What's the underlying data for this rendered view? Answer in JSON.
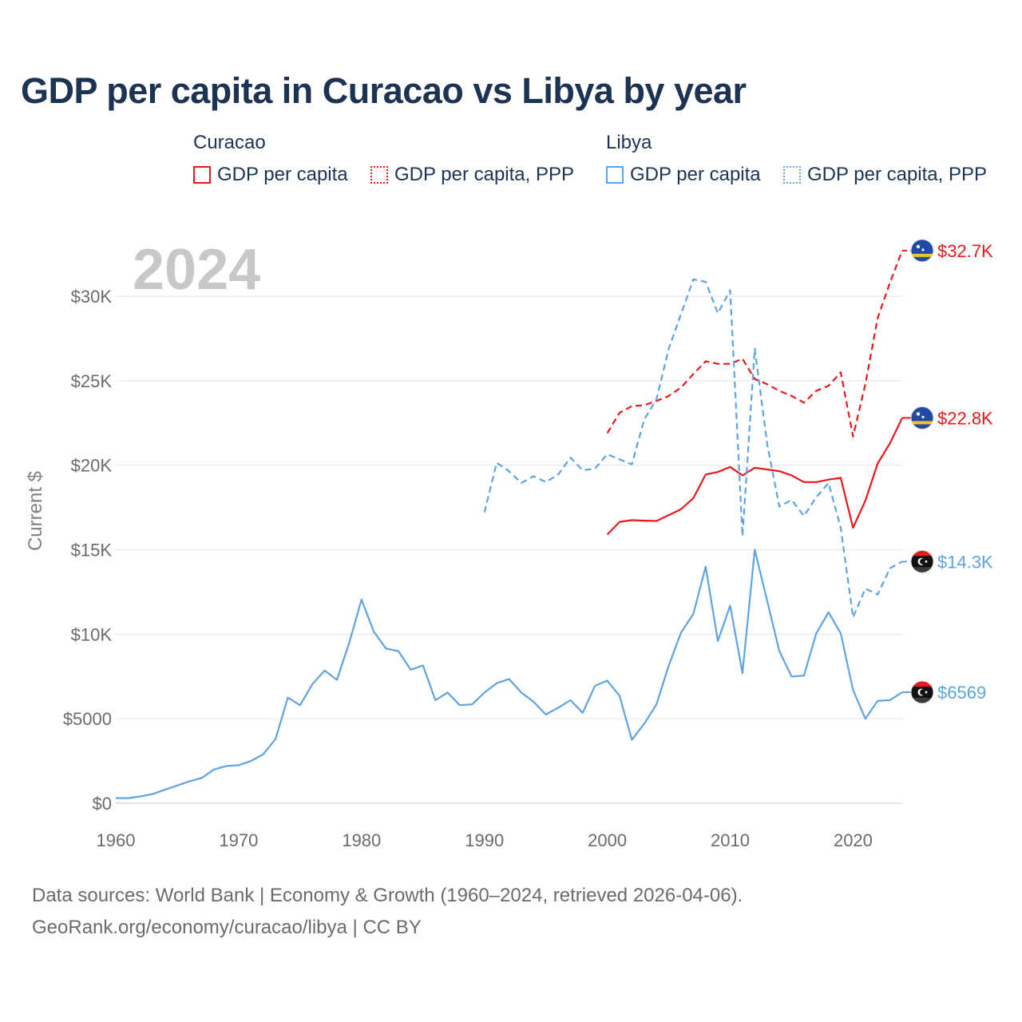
{
  "chart_data": {
    "type": "line",
    "title": "GDP per capita in Curacao vs Libya by year",
    "year_watermark": "2024",
    "ylabel": "Current $",
    "xlabel": "",
    "xlim": [
      1960,
      2024
    ],
    "ylim": [
      0,
      33000
    ],
    "x_ticks": [
      1960,
      1970,
      1980,
      1990,
      2000,
      2010,
      2020
    ],
    "x_tick_labels": [
      "1960",
      "1970",
      "1980",
      "1990",
      "2000",
      "2010",
      "2020"
    ],
    "y_ticks": [
      0,
      5000,
      10000,
      15000,
      20000,
      25000,
      30000
    ],
    "y_tick_labels": [
      "$0",
      "$5000",
      "$10K",
      "$15K",
      "$20K",
      "$25K",
      "$30K"
    ],
    "grid": true,
    "legend": {
      "groups": [
        {
          "country": "Curacao",
          "items": [
            "GDP per capita",
            "GDP per capita, PPP"
          ]
        },
        {
          "country": "Libya",
          "items": [
            "GDP per capita",
            "GDP per capita, PPP"
          ]
        }
      ]
    },
    "series": [
      {
        "name": "Curacao GDP per capita",
        "country": "Curacao",
        "style": "solid",
        "color": "#e8191c",
        "end_label": "$22.8K",
        "start_year": 2000,
        "values": [
          15900,
          16650,
          16750,
          16720,
          16700,
          17050,
          17400,
          18050,
          19450,
          19600,
          19900,
          19400,
          19850,
          19750,
          19650,
          19400,
          19000,
          19000,
          19150,
          19250,
          16300,
          17900,
          20100,
          21300,
          22800
        ]
      },
      {
        "name": "Curacao GDP per capita, PPP",
        "country": "Curacao",
        "style": "dashed",
        "color": "#e8191c",
        "end_label": "$32.7K",
        "start_year": 2000,
        "values": [
          21900,
          23100,
          23500,
          23550,
          23800,
          24100,
          24600,
          25400,
          26150,
          26000,
          26000,
          26300,
          25100,
          24800,
          24400,
          24100,
          23700,
          24400,
          24700,
          25500,
          21700,
          24800,
          28700,
          30800,
          32700
        ]
      },
      {
        "name": "Libya GDP per capita",
        "country": "Libya",
        "style": "solid",
        "color": "#5fa3e2",
        "end_label": "$6569",
        "start_year": 1960,
        "values": [
          300,
          300,
          400,
          550,
          800,
          1050,
          1300,
          1500,
          2000,
          2200,
          2250,
          2500,
          2900,
          3800,
          6250,
          5800,
          7050,
          7850,
          7300,
          9500,
          12050,
          10150,
          9150,
          9000,
          7900,
          8150,
          6100,
          6550,
          5800,
          5850,
          6550,
          7100,
          7350,
          6550,
          6000,
          5250,
          5650,
          6100,
          5350,
          6950,
          7250,
          6350,
          3750,
          4700,
          5850,
          8150,
          10100,
          11200,
          14000,
          9600,
          11700,
          7700,
          15000,
          12000,
          9000,
          7500,
          7550,
          10050,
          11300,
          10050,
          6700,
          5000,
          6050,
          6100,
          6569
        ]
      },
      {
        "name": "Libya GDP per capita, PPP",
        "country": "Libya",
        "style": "dashed",
        "color": "#5fa3e2",
        "end_label": "$14.3K",
        "start_year": 1990,
        "values": [
          17200,
          20150,
          19650,
          18950,
          19350,
          19000,
          19450,
          20450,
          19700,
          19800,
          20650,
          20350,
          20050,
          22700,
          23900,
          26900,
          28950,
          31000,
          30850,
          29000,
          30350,
          15800,
          26900,
          21300,
          17550,
          17950,
          17000,
          18100,
          18950,
          16300,
          11000,
          12700,
          12350,
          13900,
          14300
        ]
      }
    ]
  },
  "footer": {
    "line1": "Data sources: World Bank | Economy & Growth (1960–2024, retrieved 2026-04-06).",
    "line2": "GeoRank.org/economy/curacao/libya | CC BY"
  }
}
